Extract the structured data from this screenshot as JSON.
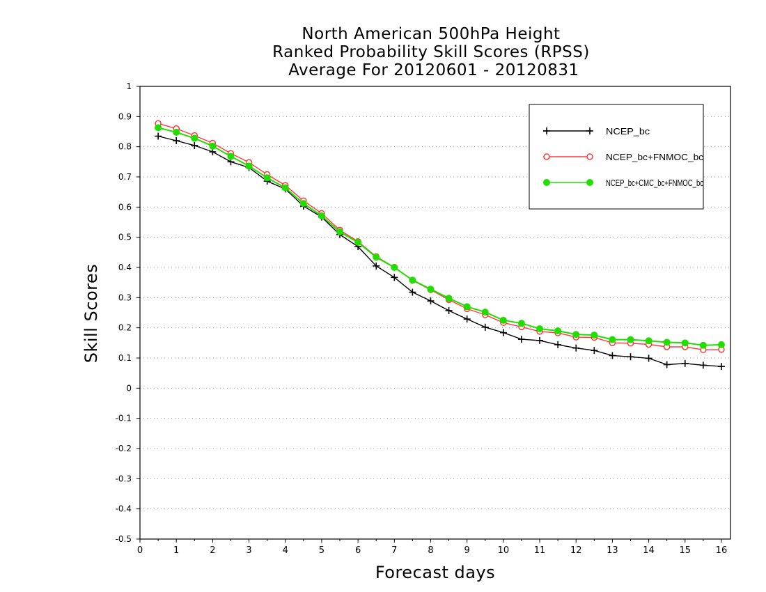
{
  "chart_data": {
    "type": "line",
    "title_lines": [
      "North American 500hPa Height",
      "Ranked Probability Skill Scores (RPSS)",
      " Average For 20120601 - 20120831"
    ],
    "xlabel": "Forecast days",
    "ylabel": "Skill Scores",
    "xlim": [
      0,
      16.25
    ],
    "ylim": [
      -0.5,
      1.0
    ],
    "x_ticks": [
      0,
      1,
      2,
      3,
      4,
      5,
      6,
      7,
      8,
      9,
      10,
      11,
      12,
      13,
      14,
      15,
      16
    ],
    "x_tick_labels": [
      "0",
      "1",
      "2",
      "3",
      "4",
      "5",
      "6",
      "7",
      "8",
      "9",
      "10",
      "11",
      "12",
      "13",
      "14",
      "15",
      "16"
    ],
    "y_ticks": [
      -0.5,
      -0.4,
      -0.3,
      -0.2,
      -0.1,
      0,
      0.1,
      0.2,
      0.3,
      0.4,
      0.5,
      0.6,
      0.7,
      0.8,
      0.9,
      1
    ],
    "y_tick_labels": [
      "-0.5",
      "-0.4",
      "-0.3",
      "-0.2",
      "-0.1",
      "0",
      "0.1",
      "0.2",
      "0.3",
      "0.4",
      "0.5",
      "0.6",
      "0.7",
      "0.8",
      "0.9",
      "1"
    ],
    "grid": "horizontal dotted",
    "legend_position": "top-right",
    "x": [
      0.5,
      1,
      1.5,
      2,
      2.5,
      3,
      3.5,
      4,
      4.5,
      5,
      5.5,
      6,
      6.5,
      7,
      7.5,
      8,
      8.5,
      9,
      9.5,
      10,
      10.5,
      11,
      11.5,
      12,
      12.5,
      13,
      13.5,
      14,
      14.5,
      15,
      15.5,
      16
    ],
    "series": [
      {
        "name": "NCEP_bc",
        "color": "#000000",
        "marker": "plus",
        "values": [
          0.835,
          0.82,
          0.804,
          0.783,
          0.75,
          0.731,
          0.686,
          0.66,
          0.603,
          0.567,
          0.509,
          0.469,
          0.405,
          0.367,
          0.318,
          0.289,
          0.257,
          0.229,
          0.202,
          0.184,
          0.162,
          0.158,
          0.144,
          0.133,
          0.125,
          0.108,
          0.104,
          0.099,
          0.078,
          0.082,
          0.076,
          0.072
        ]
      },
      {
        "name": "NCEP_bc+FNMOC_bc",
        "color": "#ff3a3a",
        "marker": "open-circle",
        "values": [
          0.877,
          0.86,
          0.837,
          0.812,
          0.778,
          0.748,
          0.708,
          0.672,
          0.621,
          0.579,
          0.524,
          0.486,
          0.436,
          0.401,
          0.357,
          0.326,
          0.293,
          0.263,
          0.243,
          0.217,
          0.203,
          0.188,
          0.183,
          0.169,
          0.168,
          0.15,
          0.149,
          0.145,
          0.137,
          0.137,
          0.127,
          0.128
        ]
      },
      {
        "name": "NCEP_bc+CMC_bc+FNMOC_bc",
        "color": "#22dd00",
        "marker": "filled-circle",
        "values": [
          0.863,
          0.848,
          0.828,
          0.802,
          0.768,
          0.736,
          0.697,
          0.664,
          0.612,
          0.571,
          0.518,
          0.483,
          0.434,
          0.4,
          0.358,
          0.328,
          0.298,
          0.27,
          0.252,
          0.225,
          0.215,
          0.197,
          0.19,
          0.178,
          0.176,
          0.161,
          0.161,
          0.157,
          0.152,
          0.15,
          0.142,
          0.144
        ]
      }
    ]
  }
}
